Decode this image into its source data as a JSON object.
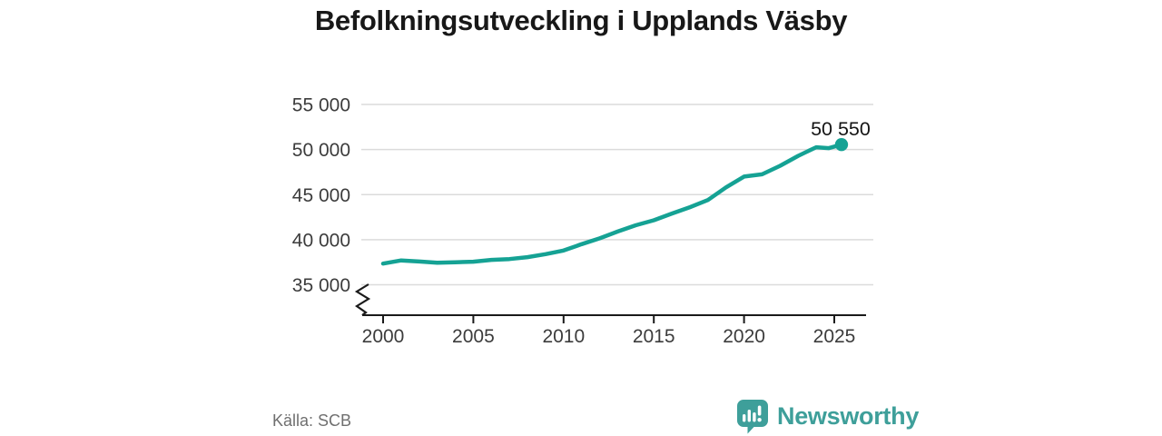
{
  "title": "Befolkningsutveckling i Upplands Väsby",
  "chart_data": {
    "type": "line",
    "title": "Befolkningsutveckling i Upplands Väsby",
    "xlabel": "",
    "ylabel": "",
    "grid": "horizontal",
    "axis_break": true,
    "ylim": [
      35000,
      55000
    ],
    "x": [
      2000,
      2001,
      2002,
      2003,
      2004,
      2005,
      2006,
      2007,
      2008,
      2009,
      2010,
      2011,
      2012,
      2013,
      2014,
      2015,
      2016,
      2017,
      2018,
      2019,
      2020,
      2021,
      2022,
      2023,
      2024,
      2024.7,
      2025.4
    ],
    "values": [
      37350,
      37700,
      37580,
      37440,
      37500,
      37560,
      37760,
      37850,
      38060,
      38400,
      38800,
      39500,
      40150,
      40900,
      41600,
      42150,
      42900,
      43600,
      44400,
      45800,
      47000,
      47250,
      48200,
      49300,
      50250,
      50150,
      50550
    ],
    "y_ticks": [
      {
        "value": 55000,
        "label": "55 000"
      },
      {
        "value": 50000,
        "label": "50 000"
      },
      {
        "value": 45000,
        "label": "45 000"
      },
      {
        "value": 40000,
        "label": "40 000"
      },
      {
        "value": 35000,
        "label": "35 000"
      }
    ],
    "x_ticks": [
      {
        "value": 2000,
        "label": "2000"
      },
      {
        "value": 2005,
        "label": "2005"
      },
      {
        "value": 2010,
        "label": "2010"
      },
      {
        "value": 2015,
        "label": "2015"
      },
      {
        "value": 2020,
        "label": "2020"
      },
      {
        "value": 2025,
        "label": "2025"
      }
    ],
    "end_point": {
      "value": 50550,
      "label": "50 550"
    },
    "colors": {
      "line": "#15A294",
      "grid": "#DBDBDB",
      "axis": "#1A1A1A",
      "tick_label": "#3C3C3C",
      "annotation": "#141414"
    }
  },
  "footer": {
    "source": "Källa: SCB",
    "brand": "Newsworthy",
    "brand_color": "#3E9F9A"
  }
}
